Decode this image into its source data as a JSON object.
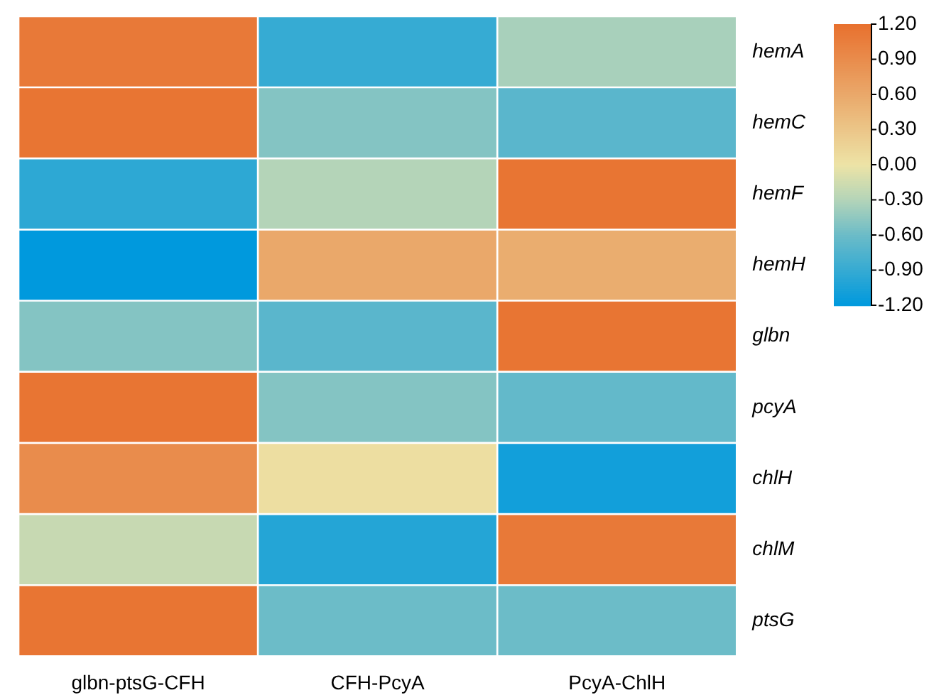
{
  "chart_data": {
    "type": "heatmap",
    "categories": [
      "glbn-ptsG-CFH",
      "CFH-PcyA",
      "PcyA-ChlH"
    ],
    "y_categories": [
      "hemA",
      "hemC",
      "hemF",
      "hemH",
      "glbn",
      "pcyA",
      "chlH",
      "chlM",
      "ptsG"
    ],
    "cells": [
      [
        1.1,
        -0.9,
        -0.35
      ],
      [
        1.15,
        -0.5,
        -0.7
      ],
      [
        -0.95,
        -0.3,
        1.15
      ],
      [
        -1.2,
        0.6,
        0.55
      ],
      [
        -0.5,
        -0.7,
        1.15
      ],
      [
        1.15,
        -0.5,
        -0.65
      ],
      [
        0.9,
        0.05,
        -1.1
      ],
      [
        -0.2,
        -1.0,
        1.1
      ],
      [
        1.15,
        -0.6,
        -0.6
      ]
    ],
    "clim": [
      -1.2,
      1.2
    ],
    "cticks": [
      {
        "value": 1.2,
        "label": "1.20"
      },
      {
        "value": 0.9,
        "label": "0.90"
      },
      {
        "value": 0.6,
        "label": "0.60"
      },
      {
        "value": 0.3,
        "label": "0.30"
      },
      {
        "value": 0,
        "label": "0.00"
      },
      {
        "value": -0.3,
        "label": "-0.30"
      },
      {
        "value": -0.6,
        "label": "-0.60"
      },
      {
        "value": -0.9,
        "label": "-0.90"
      },
      {
        "value": -1.2,
        "label": "-1.20"
      }
    ]
  }
}
